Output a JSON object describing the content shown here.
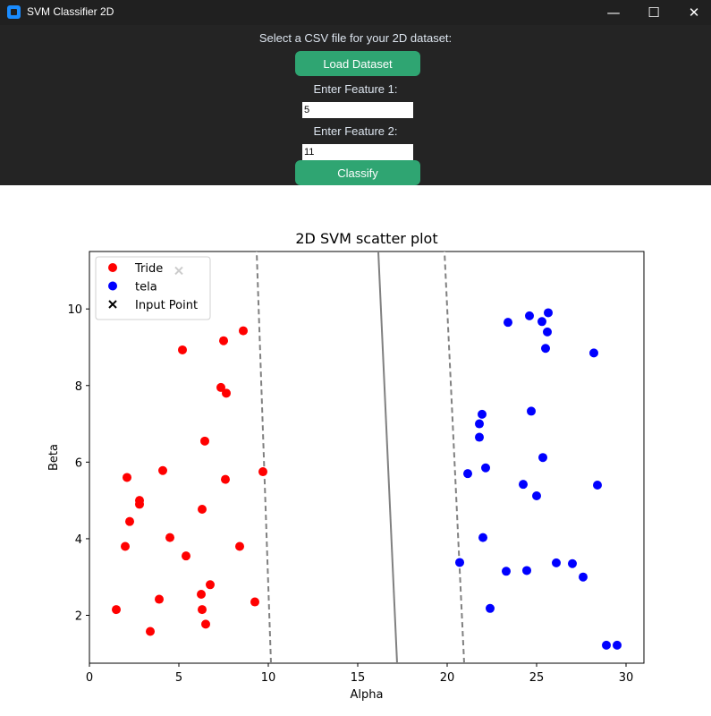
{
  "window": {
    "title": "SVM Classifier 2D",
    "minimize": "—",
    "maximize": "☐",
    "close": "✕"
  },
  "controls": {
    "prompt": "Select a CSV file for your 2D dataset:",
    "load_button": "Load Dataset",
    "feature1_label": "Enter Feature 1:",
    "feature1_value": "5",
    "feature2_label": "Enter Feature 2:",
    "feature2_value": "11",
    "classify_button": "Classify"
  },
  "colors": {
    "tride": "#ff0000",
    "tela": "#0000ff",
    "boundary": "#808080",
    "accent": "#2fa572"
  },
  "chart_data": {
    "type": "scatter",
    "title": "2D SVM scatter plot",
    "xlabel": "Alpha",
    "ylabel": "Beta",
    "xlim": [
      0,
      31
    ],
    "ylim": [
      0.75,
      11.5
    ],
    "xticks": [
      0,
      5,
      10,
      15,
      20,
      25,
      30
    ],
    "yticks": [
      2,
      4,
      6,
      8,
      10
    ],
    "legend_position": "top-left",
    "series": [
      {
        "name": "Tride",
        "color": "#ff0000",
        "points": [
          [
            1.5,
            2.15
          ],
          [
            2.0,
            3.8
          ],
          [
            2.1,
            5.6
          ],
          [
            2.25,
            4.45
          ],
          [
            2.8,
            5.0
          ],
          [
            2.8,
            4.9
          ],
          [
            3.4,
            1.58
          ],
          [
            3.9,
            2.42
          ],
          [
            4.1,
            5.78
          ],
          [
            4.5,
            4.03
          ],
          [
            5.2,
            8.93
          ],
          [
            5.4,
            3.55
          ],
          [
            6.25,
            2.55
          ],
          [
            6.3,
            4.77
          ],
          [
            6.3,
            2.15
          ],
          [
            6.45,
            6.55
          ],
          [
            6.5,
            1.77
          ],
          [
            6.75,
            2.8
          ],
          [
            7.35,
            7.95
          ],
          [
            7.5,
            9.17
          ],
          [
            7.6,
            5.55
          ],
          [
            7.65,
            7.8
          ],
          [
            8.4,
            3.8
          ],
          [
            8.6,
            9.43
          ],
          [
            9.25,
            2.35
          ],
          [
            9.7,
            5.75
          ]
        ]
      },
      {
        "name": "tela",
        "color": "#0000ff",
        "points": [
          [
            20.7,
            3.38
          ],
          [
            21.15,
            5.7
          ],
          [
            21.8,
            6.65
          ],
          [
            21.8,
            7.0
          ],
          [
            21.95,
            7.25
          ],
          [
            22.0,
            4.03
          ],
          [
            22.15,
            5.85
          ],
          [
            22.4,
            2.18
          ],
          [
            23.3,
            3.15
          ],
          [
            23.4,
            9.65
          ],
          [
            24.25,
            5.42
          ],
          [
            24.45,
            3.17
          ],
          [
            24.6,
            9.82
          ],
          [
            24.7,
            7.33
          ],
          [
            25.0,
            5.12
          ],
          [
            25.3,
            9.67
          ],
          [
            25.35,
            6.12
          ],
          [
            25.5,
            8.97
          ],
          [
            25.6,
            9.4
          ],
          [
            25.65,
            9.9
          ],
          [
            26.1,
            3.37
          ],
          [
            27.0,
            3.35
          ],
          [
            27.6,
            3.0
          ],
          [
            28.2,
            8.85
          ],
          [
            28.4,
            5.4
          ],
          [
            28.9,
            1.22
          ],
          [
            29.5,
            1.22
          ]
        ]
      },
      {
        "name": "Input Point",
        "color": "#000000",
        "marker": "x",
        "points": [
          [
            5,
            11
          ]
        ]
      }
    ],
    "decision_boundary": {
      "x_at_y_min": 17.2,
      "x_at_y_max": 16.15
    },
    "margins": [
      {
        "x_at_y_min": 10.15,
        "x_at_y_max": 9.35
      },
      {
        "x_at_y_min": 20.95,
        "x_at_y_max": 19.85
      }
    ]
  }
}
